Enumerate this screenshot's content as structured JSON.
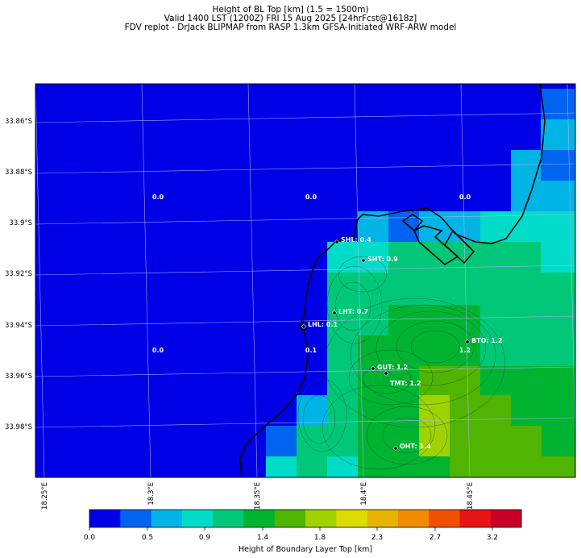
{
  "title": {
    "line1": "Height of BL Top [km] (1.5 = 1500m)",
    "line2": "Valid 1400 LST (1200Z) FRI 15 Aug 2025 [24hrFcst@1618z]",
    "line3": "FDV replot - DrJack BLIPMAP from RASP 1.3km GFSA-Initiated WRF-ARW model"
  },
  "axes": {
    "lat_labels": [
      "33.86°S",
      "33.88°S",
      "33.9°S",
      "33.92°S",
      "33.94°S",
      "33.96°S",
      "33.98°S"
    ],
    "lon_labels": [
      "18.25°E",
      "18.3°E",
      "18.35°E",
      "18.4°E",
      "18.45°E"
    ]
  },
  "stations": [
    {
      "code": "SHL",
      "value": "0.4",
      "text": "SHL: 0.4"
    },
    {
      "code": "SHT",
      "value": "0.9",
      "text": "SHT: 0.9"
    },
    {
      "code": "LHT",
      "value": "0.7",
      "text": "LHT: 0.7"
    },
    {
      "code": "LHL",
      "value": "0.1",
      "text": "LHL: 0.1"
    },
    {
      "code": "BTO",
      "value": "1.2",
      "text": "BTO: 1.2"
    },
    {
      "code": "GUT",
      "value": "1.2",
      "text": "GUT: 1.2"
    },
    {
      "code": "TMT",
      "value": "1.2",
      "text": "TMT: 1.2"
    },
    {
      "code": "OHT",
      "value": "1.4",
      "text": "OHT: 1.4"
    }
  ],
  "grid_values": [
    "0.0",
    "0.0",
    "0.0",
    "0.0",
    "0.1",
    "1.2"
  ],
  "colorbar": {
    "label": "Height of Boundary Layer Top [km]",
    "ticks": [
      "0.0",
      "0.5",
      "0.9",
      "1.4",
      "1.8",
      "2.3",
      "2.7",
      "3.2"
    ],
    "colors": [
      "#0000e6",
      "#0064f0",
      "#00b4e6",
      "#00dcc8",
      "#00c878",
      "#00b432",
      "#50b400",
      "#a0d200",
      "#dcdc00",
      "#e6b400",
      "#f08c00",
      "#f05000",
      "#e61414",
      "#c80028"
    ]
  },
  "chart_data": {
    "type": "heatmap",
    "title": "Height of BL Top [km] (1.5 = 1500m)",
    "xlabel": "",
    "ylabel": "",
    "colorbar_label": "Height of Boundary Layer Top [km]",
    "value_range": [
      0.0,
      3.6
    ],
    "colorbar_ticks": [
      0.0,
      0.5,
      0.9,
      1.4,
      1.8,
      2.3,
      2.7,
      3.2
    ],
    "point_values": [
      {
        "label": "SHL",
        "value": 0.4
      },
      {
        "label": "SHT",
        "value": 0.9
      },
      {
        "label": "LHT",
        "value": 0.7
      },
      {
        "label": "LHL",
        "value": 0.1
      },
      {
        "label": "BTO",
        "value": 1.2
      },
      {
        "label": "GUT",
        "value": 1.2
      },
      {
        "label": "TMT",
        "value": 1.2
      },
      {
        "label": "OHT",
        "value": 1.4
      }
    ]
  }
}
